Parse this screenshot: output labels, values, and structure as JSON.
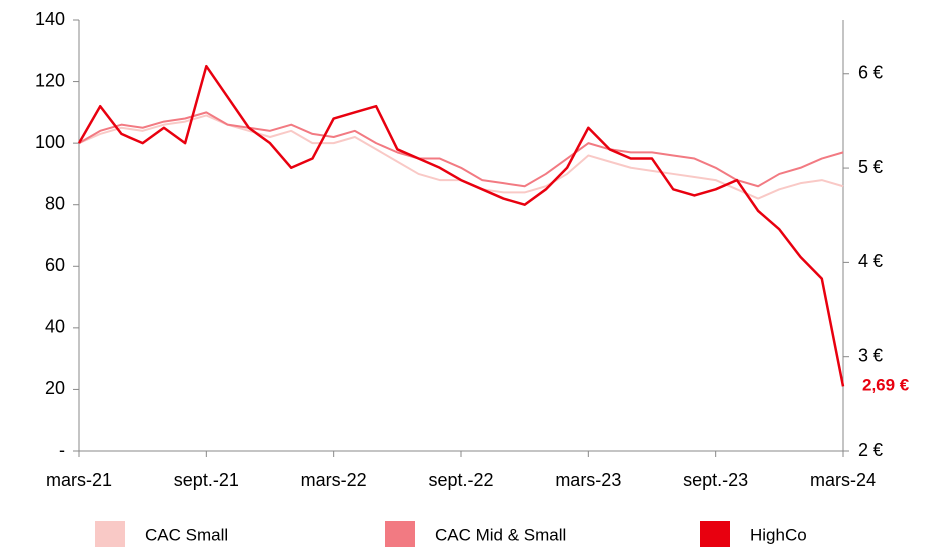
{
  "chart_data": {
    "type": "line",
    "x": [
      "2021-03",
      "2021-04",
      "2021-05",
      "2021-06",
      "2021-07",
      "2021-08",
      "2021-09",
      "2021-10",
      "2021-11",
      "2021-12",
      "2022-01",
      "2022-02",
      "2022-03",
      "2022-04",
      "2022-05",
      "2022-06",
      "2022-07",
      "2022-08",
      "2022-09",
      "2022-10",
      "2022-11",
      "2022-12",
      "2023-01",
      "2023-02",
      "2023-03",
      "2023-04",
      "2023-05",
      "2023-06",
      "2023-07",
      "2023-08",
      "2023-09",
      "2023-10",
      "2023-11",
      "2023-12",
      "2024-01",
      "2024-02",
      "2024-03"
    ],
    "series": [
      {
        "name": "CAC Small",
        "color": "#f9c9c6",
        "values": [
          100,
          103,
          105,
          104,
          106,
          107,
          109,
          106,
          104,
          102,
          104,
          100,
          100,
          102,
          98,
          94,
          90,
          88,
          88,
          85,
          84,
          84,
          86,
          90,
          96,
          94,
          92,
          91,
          90,
          89,
          88,
          85,
          82,
          85,
          87,
          88,
          86
        ]
      },
      {
        "name": "CAC Mid & Small",
        "color": "#f27a82",
        "values": [
          100,
          104,
          106,
          105,
          107,
          108,
          110,
          106,
          105,
          104,
          106,
          103,
          102,
          104,
          100,
          97,
          95,
          95,
          92,
          88,
          87,
          86,
          90,
          95,
          100,
          98,
          97,
          97,
          96,
          95,
          92,
          88,
          86,
          90,
          92,
          95,
          97
        ]
      },
      {
        "name": "HighCo",
        "color": "#e8000f",
        "values": [
          100,
          112,
          103,
          100,
          105,
          100,
          125,
          115,
          105,
          100,
          92,
          95,
          108,
          110,
          112,
          98,
          95,
          92,
          88,
          85,
          82,
          80,
          85,
          92,
          105,
          98,
          95,
          95,
          85,
          83,
          85,
          88,
          78,
          72,
          63,
          56,
          21
        ]
      }
    ],
    "xlim": [
      "2021-03",
      "2024-03"
    ],
    "xticks": [
      {
        "value": "2021-03",
        "label": "mars-21"
      },
      {
        "value": "2021-09",
        "label": "sept.-21"
      },
      {
        "value": "2022-03",
        "label": "mars-22"
      },
      {
        "value": "2022-09",
        "label": "sept.-22"
      },
      {
        "value": "2023-03",
        "label": "mars-23"
      },
      {
        "value": "2023-09",
        "label": "sept.-23"
      },
      {
        "value": "2024-03",
        "label": "mars-24"
      }
    ],
    "ylim": [
      0,
      140
    ],
    "yticks": [
      {
        "value": 0,
        "label": "-"
      },
      20,
      40,
      60,
      80,
      100,
      120,
      140
    ],
    "y2lim": [
      2,
      6.57
    ],
    "y2ticks": [
      {
        "value": 2,
        "label": "2 €"
      },
      {
        "value": 3,
        "label": "3 €"
      },
      {
        "value": 4,
        "label": "4 €"
      },
      {
        "value": 5,
        "label": "5 €"
      },
      {
        "value": 6,
        "label": "6 €"
      }
    ],
    "annotation": "2,69 €",
    "legend": "bottom"
  }
}
